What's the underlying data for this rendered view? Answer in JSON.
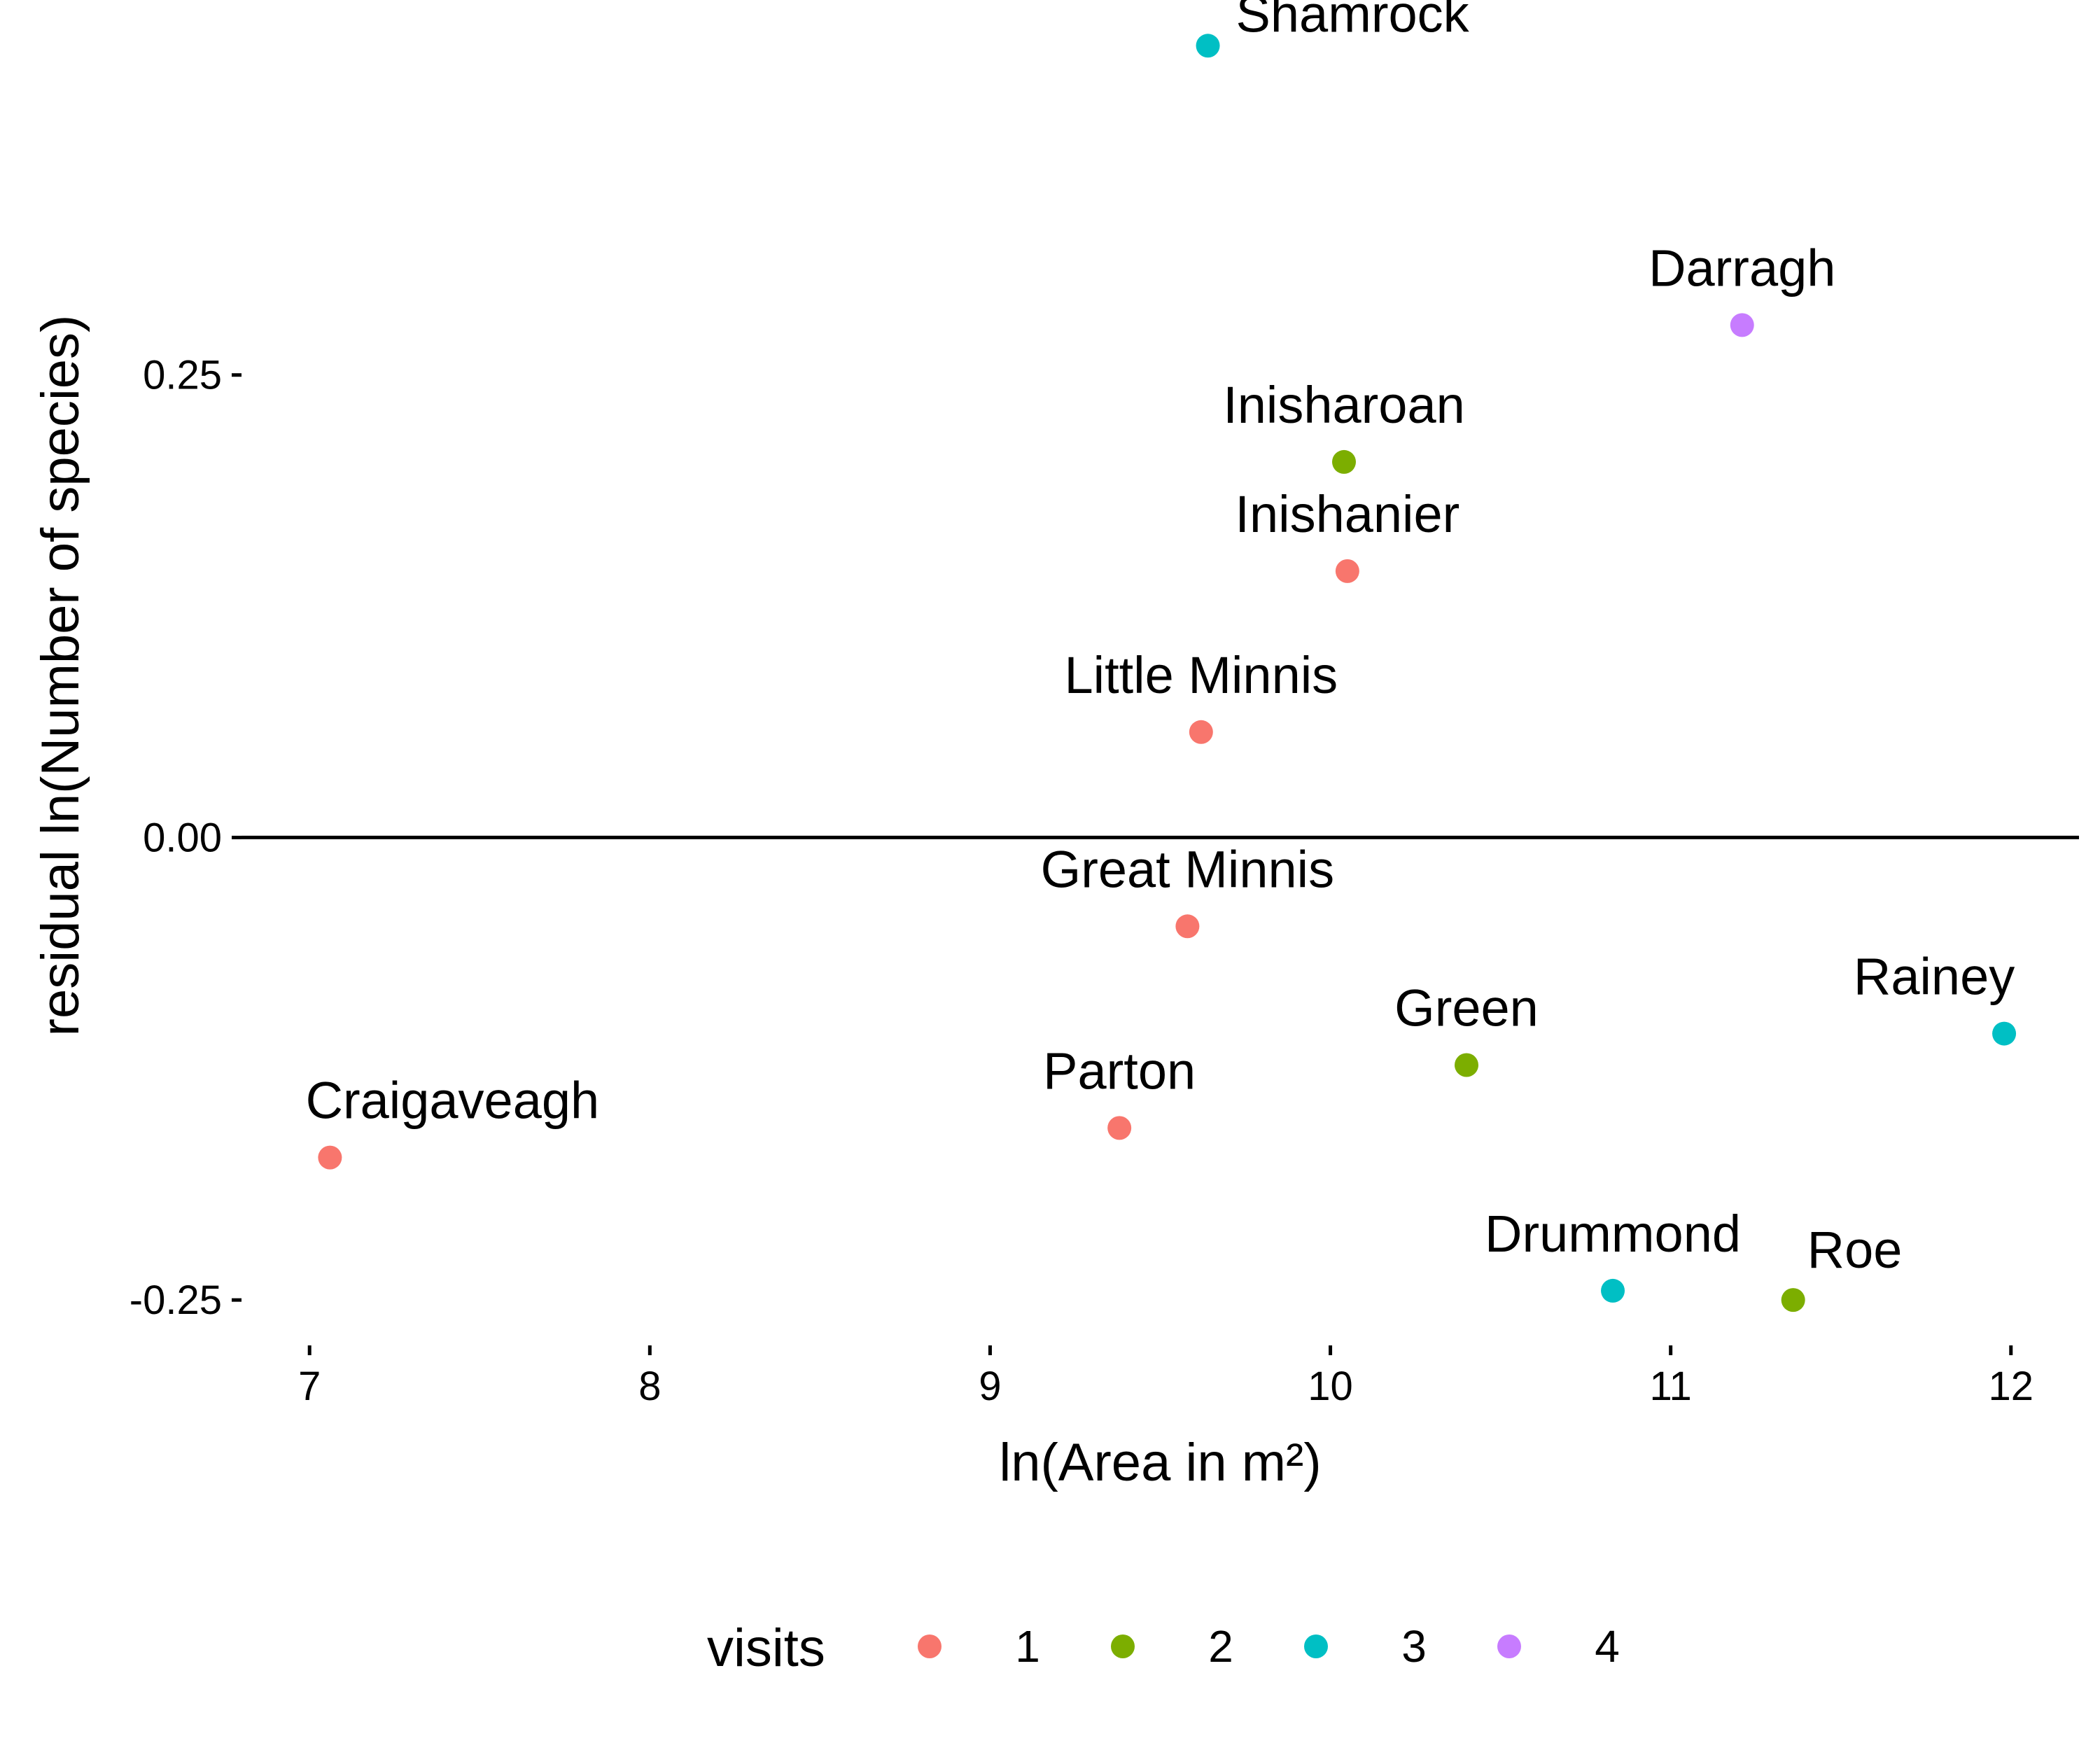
{
  "chart_data": {
    "type": "scatter",
    "title": "",
    "xlabel": "ln(Area in m²)",
    "ylabel": "residual ln(Number of species)",
    "xlim": [
      6.8,
      12.2
    ],
    "ylim": [
      -0.27,
      0.43
    ],
    "xticks": [
      7,
      8,
      9,
      10,
      11,
      12
    ],
    "yticks": [
      0.25,
      0.0,
      -0.25
    ],
    "ytick_labels": [
      "0.25",
      "0.00",
      "-0.25"
    ],
    "hline": 0,
    "grid": false,
    "legend_position": "bottom",
    "legend": {
      "title": "visits",
      "items": [
        {
          "label": "1",
          "color": "#F8766D"
        },
        {
          "label": "2",
          "color": "#7CAE00"
        },
        {
          "label": "3",
          "color": "#00BFC4"
        },
        {
          "label": "4",
          "color": "#C77CFF"
        }
      ]
    },
    "points": [
      {
        "name": "Shamrock",
        "x": 9.64,
        "y": 0.428,
        "visits": "3"
      },
      {
        "name": "Darragh",
        "x": 11.21,
        "y": 0.277,
        "visits": "4"
      },
      {
        "name": "Inisharoan",
        "x": 10.04,
        "y": 0.203,
        "visits": "2"
      },
      {
        "name": "Inishanier",
        "x": 10.05,
        "y": 0.144,
        "visits": "1"
      },
      {
        "name": "Little Minnis",
        "x": 9.62,
        "y": 0.057,
        "visits": "1"
      },
      {
        "name": "Great Minnis",
        "x": 9.58,
        "y": -0.048,
        "visits": "1"
      },
      {
        "name": "Rainey",
        "x": 11.98,
        "y": -0.106,
        "visits": "3"
      },
      {
        "name": "Green",
        "x": 10.4,
        "y": -0.123,
        "visits": "2"
      },
      {
        "name": "Parton",
        "x": 9.38,
        "y": -0.157,
        "visits": "1"
      },
      {
        "name": "Craigaveagh",
        "x": 7.06,
        "y": -0.173,
        "visits": "1"
      },
      {
        "name": "Drummond",
        "x": 10.83,
        "y": -0.245,
        "visits": "3"
      },
      {
        "name": "Roe",
        "x": 11.36,
        "y": -0.25,
        "visits": "2"
      }
    ]
  }
}
